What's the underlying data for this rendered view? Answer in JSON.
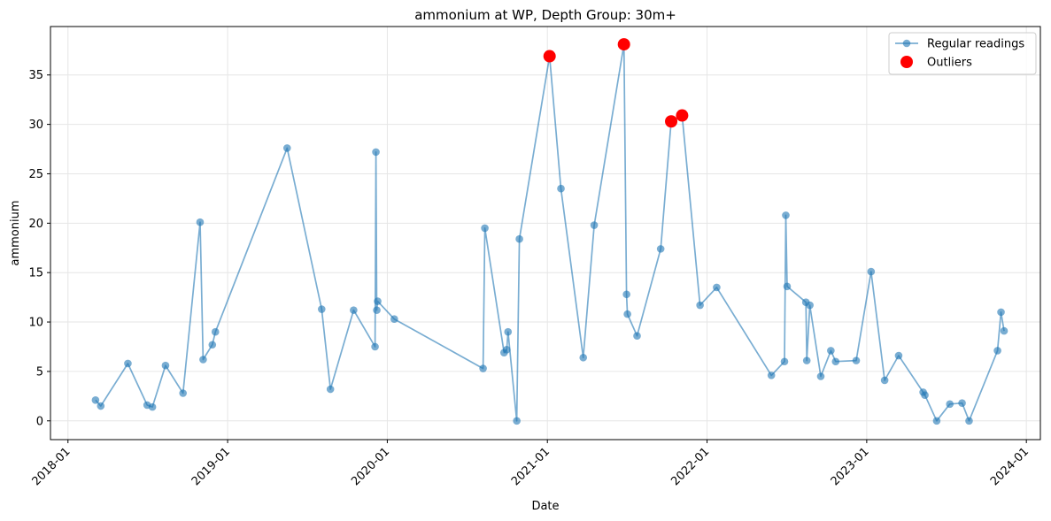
{
  "colors": {
    "regular": "#1f77b4",
    "outlier": "#ff0000",
    "grid": "#e6e6e6",
    "axis": "#000000"
  },
  "chart_data": {
    "type": "line",
    "title": "ammonium at WP, Depth Group: 30m+",
    "xlabel": "Date",
    "ylabel": "ammonium",
    "x_tick_labels": [
      "2018-01",
      "2019-01",
      "2020-01",
      "2021-01",
      "2022-01",
      "2023-01",
      "2024-01"
    ],
    "y_ticks": [
      0,
      5,
      10,
      15,
      20,
      25,
      30,
      35
    ],
    "xlim": [
      "2017-11-22",
      "2024-02-02"
    ],
    "ylim": [
      -1.9,
      39.9
    ],
    "grid": true,
    "legend_placement": "top-right",
    "series": [
      {
        "name": "Regular readings",
        "style": "line-with-markers",
        "x": [
          "2018-03-05",
          "2018-03-17",
          "2018-05-18",
          "2018-07-01",
          "2018-07-13",
          "2018-08-12",
          "2018-09-21",
          "2018-10-30",
          "2018-11-06",
          "2018-11-27",
          "2018-12-04",
          "2019-05-17",
          "2019-08-04",
          "2019-08-24",
          "2019-10-16",
          "2019-12-04",
          "2019-12-06",
          "2019-12-08",
          "2019-12-10",
          "2020-01-17",
          "2020-08-07",
          "2020-08-11",
          "2020-09-24",
          "2020-09-30",
          "2020-10-03",
          "2020-10-23",
          "2020-10-29",
          "2021-01-06",
          "2021-02-01",
          "2021-03-24",
          "2021-04-18",
          "2021-06-25",
          "2021-07-01",
          "2021-07-03",
          "2021-07-25",
          "2021-09-17",
          "2021-10-11",
          "2021-11-05",
          "2021-12-16",
          "2022-01-23",
          "2022-05-28",
          "2022-06-27",
          "2022-06-30",
          "2022-07-03",
          "2022-08-15",
          "2022-08-17",
          "2022-08-24",
          "2022-09-18",
          "2022-10-11",
          "2022-10-22",
          "2022-12-08",
          "2023-01-11",
          "2023-02-11",
          "2023-03-15",
          "2023-05-10",
          "2023-05-14",
          "2023-06-10",
          "2023-07-10",
          "2023-08-07",
          "2023-08-23",
          "2023-10-27",
          "2023-11-04",
          "2023-11-11"
        ],
        "y": [
          2.1,
          1.5,
          5.8,
          1.6,
          1.4,
          5.6,
          2.8,
          20.1,
          6.2,
          7.7,
          9.0,
          27.6,
          11.3,
          3.2,
          11.2,
          7.5,
          27.2,
          11.2,
          12.1,
          10.3,
          5.3,
          19.5,
          6.9,
          7.2,
          9.0,
          0.0,
          18.4,
          36.9,
          23.5,
          6.4,
          19.8,
          38.1,
          12.8,
          10.8,
          8.6,
          17.4,
          30.3,
          30.9,
          11.7,
          13.5,
          4.6,
          6.0,
          20.8,
          13.6,
          12.0,
          6.1,
          11.7,
          4.5,
          7.1,
          6.0,
          6.1,
          15.1,
          4.1,
          6.6,
          2.9,
          2.6,
          0.0,
          1.7,
          1.8,
          0.0,
          7.1,
          11.0,
          9.1
        ]
      },
      {
        "name": "Outliers",
        "style": "markers",
        "x": [
          "2021-01-06",
          "2021-06-25",
          "2021-10-11",
          "2021-11-05"
        ],
        "y": [
          36.9,
          38.1,
          30.3,
          30.9
        ]
      }
    ]
  }
}
